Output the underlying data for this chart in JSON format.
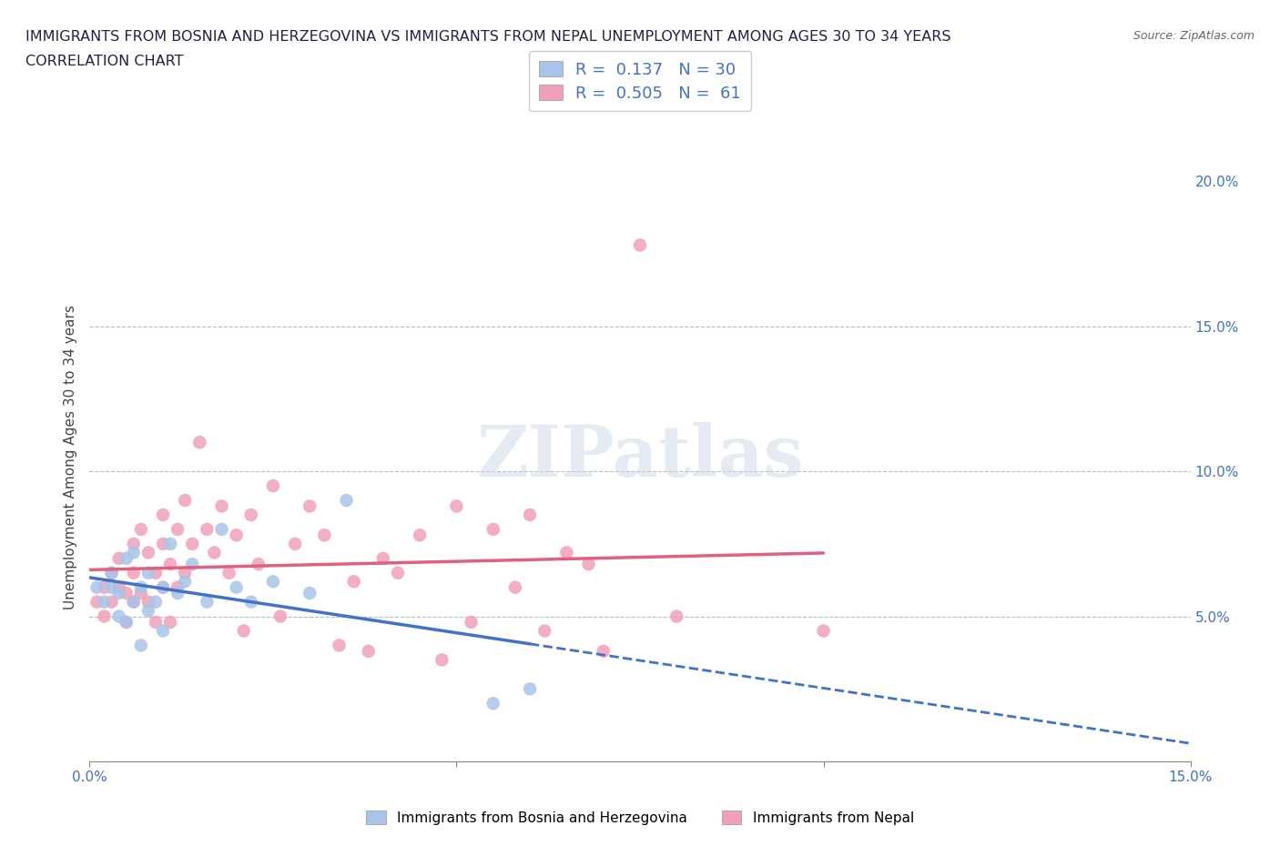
{
  "title_line1": "IMMIGRANTS FROM BOSNIA AND HERZEGOVINA VS IMMIGRANTS FROM NEPAL UNEMPLOYMENT AMONG AGES 30 TO 34 YEARS",
  "title_line2": "CORRELATION CHART",
  "source": "Source: ZipAtlas.com",
  "ylabel": "Unemployment Among Ages 30 to 34 years",
  "xlim": [
    0.0,
    0.15
  ],
  "ylim": [
    0.0,
    0.21
  ],
  "bosnia_R": 0.137,
  "bosnia_N": 30,
  "nepal_R": 0.505,
  "nepal_N": 61,
  "bosnia_color": "#a8c4e8",
  "nepal_color": "#f0a0b8",
  "bosnia_line_color": "#4472c4",
  "nepal_line_color": "#e06080",
  "watermark": "ZIPatlas",
  "bosnia_x": [
    0.001,
    0.002,
    0.003,
    0.003,
    0.004,
    0.004,
    0.005,
    0.005,
    0.006,
    0.006,
    0.007,
    0.007,
    0.008,
    0.008,
    0.009,
    0.01,
    0.01,
    0.011,
    0.012,
    0.013,
    0.014,
    0.016,
    0.018,
    0.02,
    0.022,
    0.025,
    0.03,
    0.035,
    0.055,
    0.06
  ],
  "bosnia_y": [
    0.06,
    0.055,
    0.065,
    0.06,
    0.05,
    0.058,
    0.07,
    0.048,
    0.072,
    0.055,
    0.06,
    0.04,
    0.052,
    0.065,
    0.055,
    0.045,
    0.06,
    0.075,
    0.058,
    0.062,
    0.068,
    0.055,
    0.08,
    0.06,
    0.055,
    0.062,
    0.058,
    0.09,
    0.02,
    0.025
  ],
  "nepal_x": [
    0.001,
    0.002,
    0.002,
    0.003,
    0.003,
    0.004,
    0.004,
    0.005,
    0.005,
    0.006,
    0.006,
    0.006,
    0.007,
    0.007,
    0.008,
    0.008,
    0.009,
    0.009,
    0.01,
    0.01,
    0.01,
    0.011,
    0.011,
    0.012,
    0.012,
    0.013,
    0.013,
    0.014,
    0.015,
    0.016,
    0.017,
    0.018,
    0.019,
    0.02,
    0.021,
    0.022,
    0.023,
    0.025,
    0.026,
    0.028,
    0.03,
    0.032,
    0.034,
    0.036,
    0.038,
    0.04,
    0.042,
    0.045,
    0.048,
    0.05,
    0.052,
    0.055,
    0.058,
    0.06,
    0.062,
    0.065,
    0.068,
    0.07,
    0.075,
    0.08,
    0.1
  ],
  "nepal_y": [
    0.055,
    0.06,
    0.05,
    0.065,
    0.055,
    0.06,
    0.07,
    0.058,
    0.048,
    0.065,
    0.055,
    0.075,
    0.058,
    0.08,
    0.072,
    0.055,
    0.065,
    0.048,
    0.075,
    0.06,
    0.085,
    0.068,
    0.048,
    0.08,
    0.06,
    0.09,
    0.065,
    0.075,
    0.11,
    0.08,
    0.072,
    0.088,
    0.065,
    0.078,
    0.045,
    0.085,
    0.068,
    0.095,
    0.05,
    0.075,
    0.088,
    0.078,
    0.04,
    0.062,
    0.038,
    0.07,
    0.065,
    0.078,
    0.035,
    0.088,
    0.048,
    0.08,
    0.06,
    0.085,
    0.045,
    0.072,
    0.068,
    0.038,
    0.178,
    0.05,
    0.045
  ]
}
